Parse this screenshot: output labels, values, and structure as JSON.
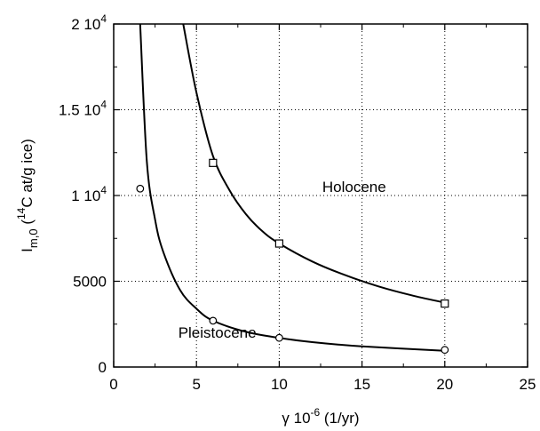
{
  "chart_data": {
    "type": "scatter",
    "x_axis": {
      "label_symbol": "γ",
      "label_exp_base": " 10",
      "label_exp": "-6",
      "label_unit": " (1/yr)",
      "range": [
        0,
        25
      ],
      "ticks": [
        0,
        5,
        10,
        15,
        20,
        25
      ],
      "tick_labels": [
        "0",
        "5",
        "10",
        "15",
        "20",
        "25"
      ]
    },
    "y_axis": {
      "label_main": "I",
      "label_sub": "m,0",
      "label_open": " (",
      "label_sup": "14",
      "label_unit": "C at/g ice)",
      "range": [
        0,
        20000
      ],
      "ticks": [
        0,
        5000,
        10000,
        15000,
        20000
      ],
      "tick_labels": [
        {
          "text": "0",
          "exp": ""
        },
        {
          "text": "5000",
          "exp": ""
        },
        {
          "text": "1 10",
          "exp": "4"
        },
        {
          "text": "1.5 10",
          "exp": "4"
        },
        {
          "text": "2 10",
          "exp": "4"
        }
      ]
    },
    "grid": "dotted",
    "series": [
      {
        "name": "Holocene",
        "marker": "square",
        "points": [
          [
            6,
            11900
          ],
          [
            10,
            7200
          ],
          [
            20,
            3700
          ]
        ],
        "curve": [
          [
            4.2,
            20000
          ],
          [
            5,
            16000
          ],
          [
            6,
            12300
          ],
          [
            7,
            10300
          ],
          [
            8,
            8900
          ],
          [
            9,
            7900
          ],
          [
            10,
            7200
          ],
          [
            12,
            6150
          ],
          [
            14,
            5350
          ],
          [
            16,
            4700
          ],
          [
            18,
            4180
          ],
          [
            20,
            3750
          ]
        ]
      },
      {
        "name": "Pleistocene",
        "marker": "circle",
        "points": [
          [
            1.6,
            10400
          ],
          [
            6,
            2700
          ],
          [
            10,
            1700
          ],
          [
            20,
            1000
          ]
        ],
        "curve": [
          [
            1.6,
            20000
          ],
          [
            2,
            12000
          ],
          [
            2.5,
            8600
          ],
          [
            3,
            6700
          ],
          [
            4,
            4500
          ],
          [
            5,
            3400
          ],
          [
            6,
            2700
          ],
          [
            8,
            2050
          ],
          [
            10,
            1700
          ],
          [
            12,
            1450
          ],
          [
            15,
            1200
          ],
          [
            20,
            950
          ]
        ]
      }
    ],
    "annotations": [
      {
        "text": "Holocene",
        "x": 12.6,
        "y": 10200
      },
      {
        "text": "Pleistocene",
        "x": 3.9,
        "y": 1700
      }
    ]
  }
}
